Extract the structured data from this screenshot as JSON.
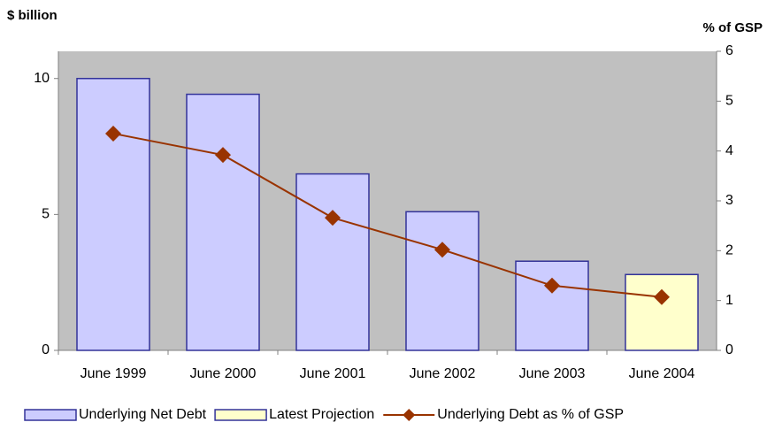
{
  "chart_data": {
    "type": "bar-line",
    "y_label": "$ billion",
    "y2_label": "% of GSP",
    "categories": [
      "June 1999",
      "June 2000",
      "June 2001",
      "June 2002",
      "June 2003",
      "June 2004"
    ],
    "series": [
      {
        "name": "Underlying Net Debt",
        "type": "bar",
        "color": "#ccccff",
        "values": [
          10,
          9.42,
          6.49,
          5.1,
          3.28,
          null
        ]
      },
      {
        "name": "Latest Projection",
        "type": "bar",
        "color": "#ffffcc",
        "values": [
          null,
          null,
          null,
          null,
          null,
          2.79
        ]
      },
      {
        "name": "Underlying Debt as % of GSP",
        "type": "line",
        "axis": "y2",
        "color": "#993300",
        "values": [
          4.35,
          3.92,
          2.66,
          2.02,
          1.3,
          1.07
        ]
      }
    ],
    "ylim": [
      0,
      11
    ],
    "yticks": [
      0,
      5,
      10
    ],
    "y2lim": [
      0,
      6
    ],
    "y2ticks": [
      0,
      1,
      2,
      3,
      4,
      5,
      6
    ],
    "plot_background": "#c0c0c0",
    "legend": "bottom"
  }
}
